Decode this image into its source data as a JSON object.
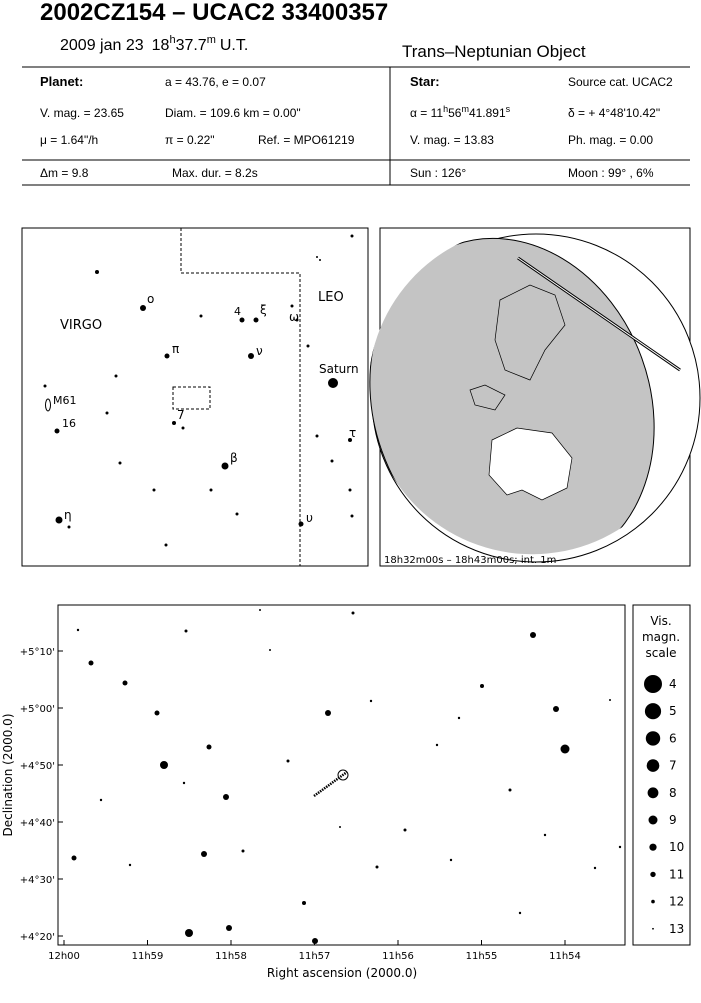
{
  "header": {
    "title": "2002CZ154  –  UCAC2 33400357",
    "date": "2009 jan 23",
    "time_h": "18",
    "time_h_unit": "h",
    "time_m": "37.7",
    "time_m_unit": "m",
    "time_suffix": "U.T.",
    "object_type": "Trans–Neptunian Object"
  },
  "planet": {
    "label": "Planet:",
    "orbit": "a = 43.76, e = 0.07",
    "vmag": "V. mag. = 23.65",
    "diam": "Diam. = 109.6 km = 0.00\"",
    "motion": "μ = 1.64\"/h",
    "parallax": "π = 0.22\"",
    "ref": "Ref. = MPO61219"
  },
  "star": {
    "label": "Star:",
    "source": "Source cat.  UCAC2",
    "ra_prefix": "α = 11",
    "ra_h": "h",
    "ra_min": "56",
    "ra_m": "m",
    "ra_sec": "41.891",
    "ra_s": "s",
    "dec": "δ = + 4°48'10.42\"",
    "vmag": "V. mag. = 13.83",
    "phmag": "Ph. mag. = 0.00"
  },
  "summary": {
    "dmag": "Δm = 9.8",
    "maxdur": "Max. dur. = 8.2s",
    "sun": "Sun : 126°",
    "moon": "Moon :  99° ,  6%"
  },
  "finder": {
    "labels": [
      "VIRGO",
      "LEO",
      "Saturn",
      "M61",
      "16",
      "o",
      "π",
      "ν",
      "β",
      "η",
      "υ",
      "ξ",
      "4",
      "ω",
      "τ",
      "7"
    ]
  },
  "globe": {
    "caption": "18h32m00s – 18h43m00s; int.  1m"
  },
  "star_chart": {
    "y_title": "Declination (2000.0)",
    "x_title": "Right ascension (2000.0)",
    "yticks": [
      "+5°10'",
      "+5°00'",
      "+4°50'",
      "+4°40'",
      "+4°30'",
      "+4°20'"
    ],
    "xticks": [
      "12h00",
      "11h59",
      "11h58",
      "11h57",
      "11h56",
      "11h55",
      "11h54"
    ],
    "scale_title": [
      "Vis.",
      "magn.",
      "scale"
    ],
    "scale": [
      4,
      5,
      6,
      7,
      8,
      9,
      10,
      11,
      12,
      13
    ]
  }
}
